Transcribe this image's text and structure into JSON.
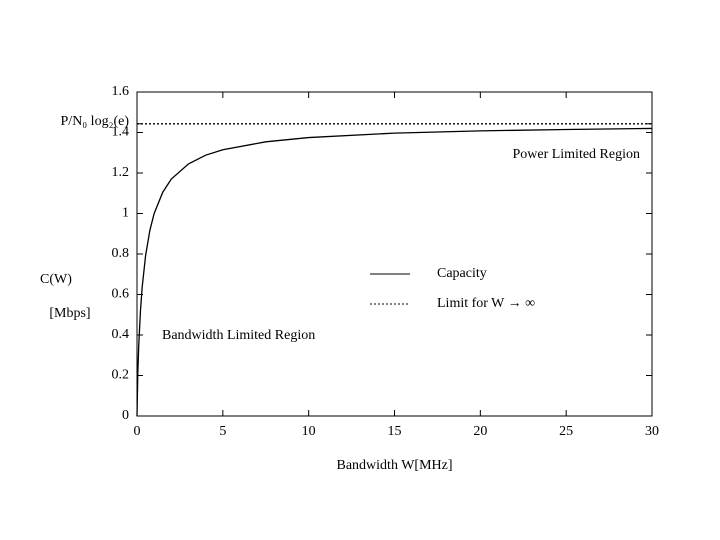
{
  "chart_data": {
    "type": "line",
    "y_label": [
      "C(W)",
      "[Mbps]"
    ],
    "x_label": "Bandwidth W[MHz]",
    "annotations": [
      "Power Limited Region",
      "Bandwidth Limited Region"
    ],
    "series": [
      {
        "name": "Capacity",
        "color": "#000000",
        "dash": false,
        "x": [
          0,
          0.05,
          0.1,
          0.2,
          0.3,
          0.5,
          0.75,
          1,
          1.5,
          2,
          3,
          4,
          5,
          7.5,
          10,
          15,
          20,
          25,
          30
        ],
        "values": [
          0,
          0.22,
          0.346,
          0.517,
          0.635,
          0.792,
          0.917,
          1,
          1.105,
          1.17,
          1.245,
          1.288,
          1.315,
          1.354,
          1.375,
          1.397,
          1.408,
          1.415,
          1.42
        ]
      },
      {
        "name": "Limit for W → ∞",
        "color": "#000000",
        "dash": true,
        "x": [
          0,
          30
        ],
        "values": [
          1.443,
          1.443
        ]
      }
    ],
    "xlim": [
      0,
      30
    ],
    "xticks": [
      0,
      5,
      10,
      15,
      20,
      25,
      30
    ],
    "ylim": [
      0,
      1.6
    ],
    "yticks": [
      0,
      0.2,
      0.4,
      0.6,
      0.8,
      1,
      1.2,
      1.4,
      1.6,
      {
        "value": 1.443,
        "label": "P/N₀ log₂(e)"
      }
    ],
    "grid": false
  }
}
